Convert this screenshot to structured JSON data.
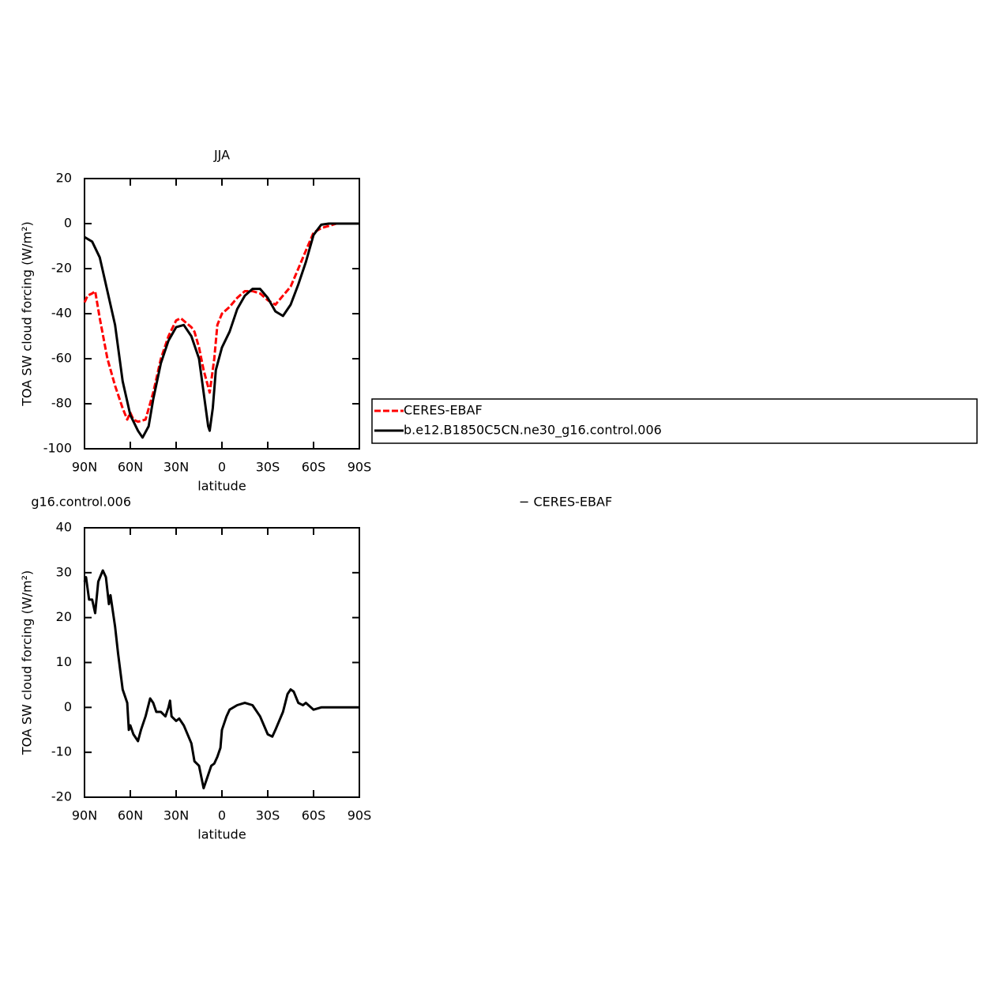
{
  "chart_data": [
    {
      "type": "line",
      "title": "JJA",
      "xlabel": "latitude",
      "ylabel": "TOA SW cloud forcing (W/m²)",
      "xlim": [
        90,
        -90
      ],
      "xticks": [
        {
          "value": 90,
          "label": "90N"
        },
        {
          "value": 60,
          "label": "60N"
        },
        {
          "value": 30,
          "label": "30N"
        },
        0,
        {
          "value": -30,
          "label": "30S"
        },
        {
          "value": -60,
          "label": "60S"
        },
        {
          "value": -90,
          "label": "90S"
        }
      ],
      "ylim": [
        -100,
        20
      ],
      "yticks": [
        -100,
        -80,
        -60,
        -40,
        -20,
        0,
        20
      ],
      "legend": "right",
      "series": [
        {
          "name": "CERES-EBAF",
          "color": "#ff0000",
          "linestyle": "dashed",
          "x": [
            90,
            88,
            85,
            83,
            80,
            75,
            70,
            65,
            62,
            60,
            58,
            55,
            50,
            45,
            40,
            35,
            30,
            27,
            20,
            18,
            15,
            12,
            8,
            5,
            3,
            0,
            -5,
            -10,
            -15,
            -20,
            -25,
            -30,
            -35,
            -40,
            -45,
            -50,
            -55,
            -60,
            -65,
            -70,
            -75,
            -80,
            -90
          ],
          "values": [
            -35,
            -32,
            -31,
            -30,
            -42,
            -60,
            -72,
            -82,
            -87,
            -84,
            -87,
            -88,
            -87,
            -75,
            -60,
            -50,
            -43,
            -42,
            -46,
            -48,
            -55,
            -65,
            -75,
            -60,
            -45,
            -40,
            -37,
            -33,
            -30,
            -30,
            -31,
            -34,
            -36,
            -32,
            -28,
            -20,
            -12,
            -4,
            -2,
            -1,
            0,
            0,
            0
          ]
        },
        {
          "name": "b.e12.B1850C5CN.ne30_g16.control.006",
          "color": "#000000",
          "linestyle": "solid",
          "x": [
            90,
            85,
            80,
            75,
            70,
            65,
            60,
            55,
            52,
            48,
            45,
            40,
            35,
            30,
            25,
            20,
            15,
            12,
            9,
            8,
            6,
            4,
            0,
            -5,
            -10,
            -15,
            -20,
            -25,
            -30,
            -35,
            -40,
            -45,
            -50,
            -55,
            -60,
            -65,
            -70,
            -80,
            -90
          ],
          "values": [
            -6,
            -8,
            -15,
            -30,
            -45,
            -70,
            -85,
            -92,
            -95,
            -90,
            -78,
            -62,
            -52,
            -46,
            -45,
            -50,
            -60,
            -75,
            -90,
            -92,
            -82,
            -65,
            -55,
            -48,
            -38,
            -32,
            -29,
            -29,
            -33,
            -39,
            -41,
            -36,
            -27,
            -17,
            -5,
            -0.5,
            0,
            0,
            0
          ]
        }
      ]
    },
    {
      "type": "line",
      "title": "g16.control.006",
      "title_right": "− CERES-EBAF",
      "xlabel": "latitude",
      "ylabel": "TOA SW cloud forcing (W/m²)",
      "xlim": [
        90,
        -90
      ],
      "xticks": [
        {
          "value": 90,
          "label": "90N"
        },
        {
          "value": 60,
          "label": "60N"
        },
        {
          "value": 30,
          "label": "30N"
        },
        0,
        {
          "value": -30,
          "label": "30S"
        },
        {
          "value": -60,
          "label": "60S"
        },
        {
          "value": -90,
          "label": "90S"
        }
      ],
      "ylim": [
        -20,
        40
      ],
      "yticks": [
        -20,
        -10,
        0,
        10,
        20,
        30,
        40
      ],
      "series": [
        {
          "color": "#000000",
          "linestyle": "solid",
          "x": [
            90,
            89,
            87,
            85,
            83,
            81,
            78,
            76,
            74,
            73,
            70,
            68,
            65,
            63,
            62,
            61,
            60,
            58,
            55,
            53,
            50,
            47,
            45,
            43,
            40,
            37,
            35,
            34,
            33,
            30,
            28,
            25,
            20,
            18,
            15,
            12,
            10,
            7,
            5,
            3,
            1,
            0,
            -3,
            -5,
            -10,
            -15,
            -20,
            -25,
            -30,
            -33,
            -35,
            -40,
            -43,
            -45,
            -47,
            -50,
            -53,
            -55,
            -60,
            -65,
            -70,
            -90
          ],
          "values": [
            28,
            29,
            24,
            24,
            21,
            28,
            30.5,
            29,
            23,
            25,
            18,
            12,
            4,
            2,
            1,
            -5,
            -4,
            -6,
            -7.5,
            -5,
            -2,
            2,
            1,
            -1,
            -1,
            -2,
            0,
            1.5,
            -2,
            -3,
            -2.5,
            -4,
            -8,
            -12,
            -13,
            -18,
            -16,
            -13,
            -12.5,
            -11,
            -9,
            -5,
            -2,
            -0.5,
            0.5,
            1,
            0.5,
            -2,
            -6,
            -6.5,
            -5,
            -1,
            3,
            4,
            3.5,
            1,
            0.5,
            1,
            -0.5,
            0,
            0,
            0
          ]
        }
      ]
    }
  ]
}
